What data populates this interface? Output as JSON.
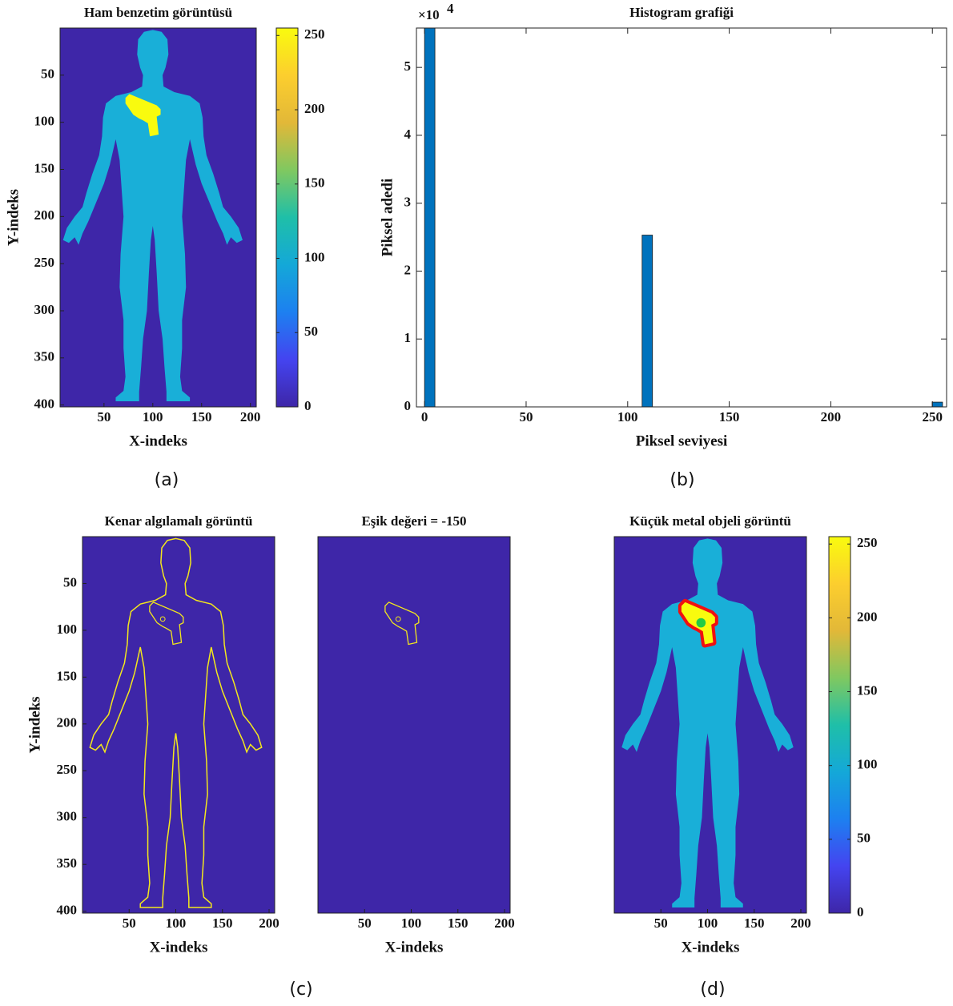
{
  "chart_data": [
    {
      "type": "image",
      "title": "Ham benzetim görüntüsü",
      "xlabel": "X-indeks",
      "ylabel": "Y-indeks",
      "xlim": [
        5,
        206
      ],
      "ylim": [
        0,
        402
      ],
      "xticks": [
        50,
        100,
        150,
        200
      ],
      "yticks": [
        50,
        100,
        150,
        200,
        250,
        300,
        350,
        400
      ],
      "colorbar": {
        "clim": [
          0,
          255
        ],
        "ticks": [
          0,
          50,
          100,
          150,
          200,
          250
        ],
        "colormap": [
          "#3e26a8",
          "#4444f0",
          "#1d80f0",
          "#14a8d8",
          "#1fbfa8",
          "#80c860",
          "#e2b838",
          "#fcce2e",
          "#f9fb0e"
        ]
      }
    },
    {
      "type": "histogram",
      "title": "Histogram grafiği",
      "xlabel": "Piksel seviyesi",
      "ylabel": "Piksel adedi",
      "color": "#0072bd",
      "y_multiplier": "×10",
      "y_multiplier_exponent": "4",
      "bins": [
        0,
        5.1,
        10.2,
        15.3,
        20.4,
        25.5,
        30.6,
        35.7,
        40.8,
        45.9,
        51,
        56.1,
        61.2,
        66.3,
        71.4,
        76.5,
        81.6,
        86.7,
        91.8,
        96.9,
        102,
        107.1,
        112.2,
        117.3,
        122.4,
        127.5,
        132.6,
        137.7,
        142.8,
        147.9,
        153,
        158.1,
        163.2,
        168.3,
        173.4,
        178.5,
        183.6,
        188.7,
        193.8,
        198.9,
        204,
        209.1,
        214.2,
        219.3,
        224.4,
        229.5,
        234.6,
        239.7,
        244.8,
        249.9,
        255
      ],
      "values": [
        55800,
        0,
        0,
        0,
        0,
        0,
        0,
        0,
        0,
        0,
        0,
        0,
        0,
        0,
        0,
        0,
        0,
        0,
        0,
        0,
        0,
        25300,
        0,
        0,
        0,
        0,
        0,
        0,
        0,
        0,
        0,
        0,
        0,
        0,
        0,
        0,
        0,
        0,
        0,
        0,
        0,
        0,
        0,
        0,
        0,
        0,
        0,
        0,
        0,
        700
      ],
      "xlim": [
        -4,
        257
      ],
      "ylim": [
        0,
        55800
      ],
      "xticks": [
        0,
        50,
        100,
        150,
        200,
        250
      ],
      "yticks": [
        0,
        {
          "value": 10000,
          "label": "1"
        },
        {
          "value": 20000,
          "label": "2"
        },
        {
          "value": 30000,
          "label": "3"
        },
        {
          "value": 40000,
          "label": "4"
        },
        {
          "value": 50000,
          "label": "5"
        }
      ]
    },
    {
      "type": "image",
      "title": "Kenar algılamalı görüntü",
      "xlabel": "X-indeks",
      "ylabel": "Y-indeks",
      "xlim": [
        0,
        206
      ],
      "ylim": [
        0,
        402
      ],
      "xticks": [
        50,
        100,
        150,
        200
      ],
      "yticks": [
        50,
        100,
        150,
        200,
        250,
        300,
        350,
        400
      ]
    },
    {
      "type": "image",
      "title": "Eşik değeri = -150",
      "xlabel": "X-indeks",
      "xlim": [
        0,
        206
      ],
      "ylim": [
        0,
        402
      ],
      "xticks": [
        50,
        100,
        150,
        200
      ]
    },
    {
      "type": "image",
      "title": "Küçük metal objeli görüntü",
      "xlabel": "X-indeks",
      "xlim": [
        0,
        206
      ],
      "ylim": [
        0,
        402
      ],
      "xticks": [
        50,
        100,
        150,
        200
      ],
      "colorbar": {
        "clim": [
          0,
          255
        ],
        "ticks": [
          0,
          50,
          100,
          150,
          200,
          250
        ],
        "colormap": [
          "#3e26a8",
          "#4444f0",
          "#1d80f0",
          "#14a8d8",
          "#1fbfa8",
          "#80c860",
          "#e2b838",
          "#fcce2e",
          "#f9fb0e"
        ]
      }
    }
  ],
  "captions": [
    "(a)",
    "(b)",
    "(c)",
    "(d)"
  ]
}
